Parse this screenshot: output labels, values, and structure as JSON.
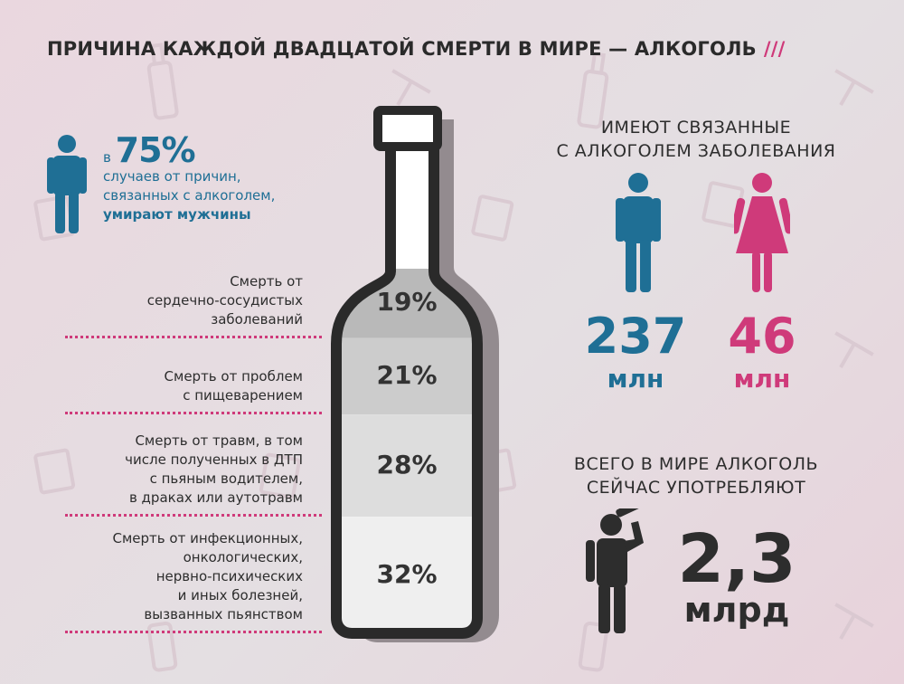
{
  "title": "ПРИЧИНА КАЖДОЙ ДВАДЦАТОЙ СМЕРТИ В МИРЕ — АЛКОГОЛЬ",
  "title_mark": "///",
  "men_block": {
    "prefix": "в",
    "percent": "75%",
    "line1": "случаев от причин,",
    "line2": "связанных с алкоголем,",
    "line3": "умирают мужчины"
  },
  "chart_data": {
    "type": "bar",
    "categories": [
      "Смерть от сердечно-сосудистых заболеваний",
      "Смерть от проблем с пищеварением",
      "Смерть от травм, в том числе полученных в ДТП с пьяным водителем, в драках или аутотравм",
      "Смерть от инфекционных, онкологических, нервно-психических и иных болезней, вызванных пьянством"
    ],
    "values": [
      19,
      21,
      28,
      32
    ],
    "labels": [
      "19%",
      "21%",
      "28%",
      "32%"
    ],
    "cause_lines": [
      [
        "Смерть от",
        "сердечно-сосудистых",
        "заболеваний"
      ],
      [
        "Смерть от проблем",
        "с пищеварением"
      ],
      [
        "Смерть от травм, в том",
        "числе полученных в ДТП",
        "с пьяным водителем,",
        "в драках или аутотравм"
      ],
      [
        "Смерть от инфекционных,",
        "онкологических,",
        "нервно-психических",
        "и иных болезней,",
        "вызванных пьянством"
      ]
    ],
    "fill_colors": [
      "#b9b9b9",
      "#cccccc",
      "#dddddd",
      "#efefef"
    ]
  },
  "diseases": {
    "heading_line1": "ИМЕЮТ СВЯЗАННЫЕ",
    "heading_line2": "С АЛКОГОЛЕМ ЗАБОЛЕВАНИЯ",
    "men_value": "237",
    "men_unit": "млн",
    "women_value": "46",
    "women_unit": "млн"
  },
  "drinkers": {
    "heading_line1": "ВСЕГО В МИРЕ АЛКОГОЛЬ",
    "heading_line2": "СЕЙЧАС УПОТРЕБЛЯЮТ",
    "value": "2,3",
    "unit": "млрд"
  },
  "colors": {
    "men": "#1f6f95",
    "women": "#cf3a7a",
    "dark": "#2d2d2d",
    "bottle_outline": "#2a2a2a",
    "bottle_shadow": "#938b8f"
  },
  "icons": [
    "man-icon",
    "woman-icon",
    "drinking-man-icon",
    "bottle-icon",
    "glass-icon",
    "corkscrew-icon"
  ]
}
